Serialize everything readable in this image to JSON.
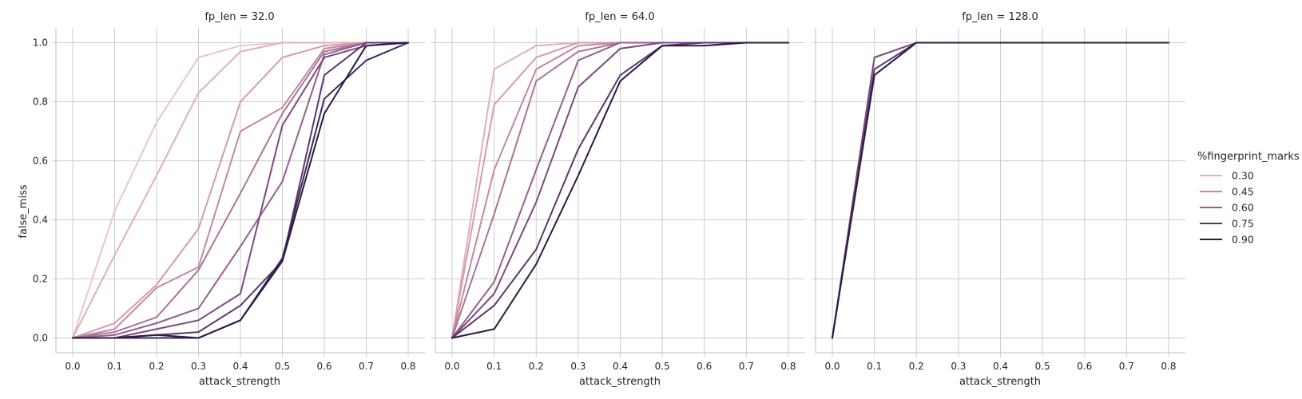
{
  "chart_data": [
    {
      "type": "line",
      "title": "fp_len = 32.0",
      "xlabel": "attack_strength",
      "ylabel": "false_miss",
      "x": [
        0.0,
        0.1,
        0.2,
        0.3,
        0.4,
        0.5,
        0.6,
        0.7,
        0.8
      ],
      "xticks": [
        "0.0",
        "0.1",
        "0.2",
        "0.3",
        "0.4",
        "0.5",
        "0.6",
        "0.7",
        "0.8"
      ],
      "yticks": [
        "0.0",
        "0.2",
        "0.4",
        "0.6",
        "0.8",
        "1.0"
      ],
      "xlim": [
        -0.04,
        0.84
      ],
      "ylim": [
        -0.05,
        1.05
      ],
      "grid": true,
      "series": [
        {
          "color": "#e8c7c7",
          "values": [
            0.0,
            0.43,
            0.73,
            0.95,
            0.99,
            1.0,
            1.0,
            1.0,
            1.0
          ]
        },
        {
          "color": "#e0b0b6",
          "values": [
            0.0,
            0.28,
            0.55,
            0.83,
            0.97,
            1.0,
            1.0,
            1.0,
            1.0
          ]
        },
        {
          "color": "#d49cac",
          "values": [
            0.0,
            0.05,
            0.18,
            0.37,
            0.8,
            0.95,
            0.99,
            1.0,
            1.0
          ]
        },
        {
          "color": "#c289a3",
          "values": [
            0.0,
            0.03,
            0.17,
            0.24,
            0.7,
            0.78,
            0.98,
            1.0,
            1.0
          ]
        },
        {
          "color": "#ac7499",
          "values": [
            0.0,
            0.02,
            0.07,
            0.23,
            0.49,
            0.76,
            0.97,
            1.0,
            1.0
          ]
        },
        {
          "color": "#955f8e",
          "values": [
            0.0,
            0.01,
            0.05,
            0.1,
            0.31,
            0.53,
            0.96,
            1.0,
            1.0
          ]
        },
        {
          "color": "#7a4a80",
          "values": [
            0.0,
            0.0,
            0.03,
            0.06,
            0.15,
            0.72,
            0.95,
            0.99,
            1.0
          ]
        },
        {
          "color": "#5c3670",
          "values": [
            0.0,
            0.0,
            0.01,
            0.02,
            0.11,
            0.26,
            0.89,
            1.0,
            1.0
          ]
        },
        {
          "color": "#40265b",
          "values": [
            0.0,
            0.0,
            0.0,
            0.0,
            0.06,
            0.27,
            0.81,
            0.94,
            1.0
          ]
        },
        {
          "color": "#2a1b42",
          "values": [
            0.0,
            0.0,
            0.01,
            0.0,
            0.06,
            0.26,
            0.76,
            0.99,
            1.0
          ]
        }
      ]
    },
    {
      "type": "line",
      "title": "fp_len = 64.0",
      "xlabel": "attack_strength",
      "ylabel": "",
      "x": [
        0.0,
        0.1,
        0.2,
        0.3,
        0.4,
        0.5,
        0.6,
        0.7,
        0.8
      ],
      "xticks": [
        "0.0",
        "0.1",
        "0.2",
        "0.3",
        "0.4",
        "0.5",
        "0.6",
        "0.7",
        "0.8"
      ],
      "xlim": [
        -0.04,
        0.84
      ],
      "ylim": [
        -0.05,
        1.05
      ],
      "grid": true,
      "series": [
        {
          "color": "#e0b0b6",
          "values": [
            0.0,
            0.91,
            0.99,
            1.0,
            1.0,
            1.0,
            1.0,
            1.0,
            1.0
          ]
        },
        {
          "color": "#d49cac",
          "values": [
            0.0,
            0.79,
            0.95,
            1.0,
            1.0,
            1.0,
            1.0,
            1.0,
            1.0
          ]
        },
        {
          "color": "#c289a3",
          "values": [
            0.0,
            0.57,
            0.91,
            0.99,
            1.0,
            1.0,
            1.0,
            1.0,
            1.0
          ]
        },
        {
          "color": "#ac7499",
          "values": [
            0.0,
            0.42,
            0.87,
            0.97,
            1.0,
            1.0,
            1.0,
            1.0,
            1.0
          ]
        },
        {
          "color": "#955f8e",
          "values": [
            0.0,
            0.19,
            0.57,
            0.94,
            1.0,
            1.0,
            1.0,
            1.0,
            1.0
          ]
        },
        {
          "color": "#7a4a80",
          "values": [
            0.0,
            0.15,
            0.46,
            0.85,
            0.98,
            1.0,
            1.0,
            1.0,
            1.0
          ]
        },
        {
          "color": "#5c3670",
          "values": [
            0.0,
            0.11,
            0.3,
            0.64,
            0.89,
            0.99,
            1.0,
            1.0,
            1.0
          ]
        },
        {
          "color": "#2a1b42",
          "values": [
            0.0,
            0.03,
            0.25,
            0.55,
            0.87,
            0.99,
            0.99,
            1.0,
            1.0
          ]
        }
      ]
    },
    {
      "type": "line",
      "title": "fp_len = 128.0",
      "xlabel": "attack_strength",
      "ylabel": "",
      "x": [
        0.0,
        0.1,
        0.2,
        0.3,
        0.4,
        0.5,
        0.6,
        0.7,
        0.8
      ],
      "xticks": [
        "0.0",
        "0.1",
        "0.2",
        "0.3",
        "0.4",
        "0.5",
        "0.6",
        "0.7",
        "0.8"
      ],
      "xlim": [
        -0.04,
        0.84
      ],
      "ylim": [
        -0.05,
        1.05
      ],
      "grid": true,
      "series": [
        {
          "color": "#7a4a80",
          "values": [
            0.0,
            0.95,
            1.0,
            1.0,
            1.0,
            1.0,
            1.0,
            1.0,
            1.0
          ]
        },
        {
          "color": "#5c3670",
          "values": [
            0.0,
            0.91,
            1.0,
            1.0,
            1.0,
            1.0,
            1.0,
            1.0,
            1.0
          ]
        },
        {
          "color": "#2a1b42",
          "values": [
            0.0,
            0.89,
            1.0,
            1.0,
            1.0,
            1.0,
            1.0,
            1.0,
            1.0
          ]
        }
      ]
    }
  ],
  "legend": {
    "title": "%fingerprint_marks",
    "placement": "right",
    "entries": [
      {
        "label": "0.30",
        "color": "#e0b0b6"
      },
      {
        "label": "0.45",
        "color": "#c289a3"
      },
      {
        "label": "0.60",
        "color": "#955f8e"
      },
      {
        "label": "0.75",
        "color": "#5c3670"
      },
      {
        "label": "0.90",
        "color": "#2a1b42"
      }
    ]
  }
}
